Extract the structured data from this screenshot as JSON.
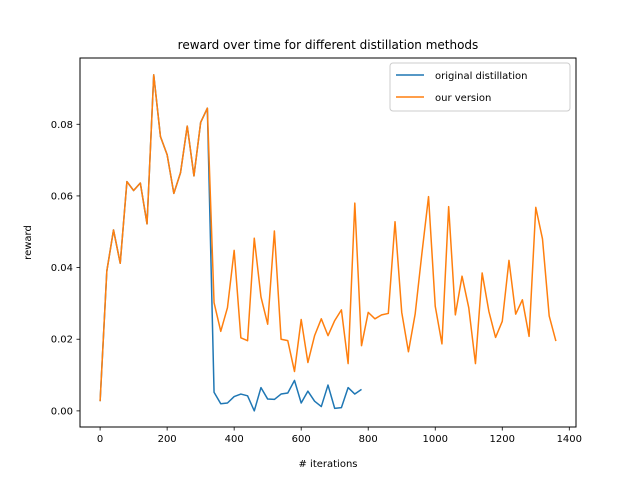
{
  "chart_data": {
    "type": "line",
    "title": "reward over time for different distillation methods",
    "xlabel": "# iterations",
    "ylabel": "reward",
    "xlim": [
      -60,
      1420
    ],
    "ylim": [
      -0.0045,
      0.0985
    ],
    "xticks": [
      0,
      200,
      400,
      600,
      800,
      1000,
      1200,
      1400
    ],
    "yticks": [
      0.0,
      0.02,
      0.04,
      0.06,
      0.08
    ],
    "xtick_labels": [
      "0",
      "200",
      "400",
      "600",
      "800",
      "1000",
      "1200",
      "1400"
    ],
    "ytick_labels": [
      "0.00",
      "0.02",
      "0.04",
      "0.06",
      "0.08"
    ],
    "grid": false,
    "legend_position": "upper right",
    "series": [
      {
        "name": "original distillation",
        "color": "#1f77b4",
        "x": [
          0,
          20,
          40,
          60,
          80,
          100,
          120,
          140,
          160,
          180,
          200,
          220,
          240,
          260,
          280,
          300,
          320,
          340,
          360,
          380,
          400,
          420,
          440,
          460,
          480,
          500,
          520,
          540,
          560,
          580,
          600,
          620,
          640,
          660,
          680,
          700,
          720,
          740,
          760,
          780
        ],
        "y": [
          0.0027,
          0.039,
          0.0505,
          0.0412,
          0.064,
          0.0615,
          0.0636,
          0.0522,
          0.0938,
          0.0766,
          0.0715,
          0.0607,
          0.0665,
          0.0795,
          0.0656,
          0.0805,
          0.0845,
          0.0052,
          0.002,
          0.0022,
          0.004,
          0.0047,
          0.0042,
          0.0,
          0.0065,
          0.0033,
          0.0032,
          0.0047,
          0.005,
          0.0085,
          0.0022,
          0.0055,
          0.0027,
          0.0012,
          0.0072,
          0.0007,
          0.0009,
          0.0065,
          0.0047,
          0.006
        ]
      },
      {
        "name": "our version",
        "color": "#ff7f0e",
        "x": [
          0,
          20,
          40,
          60,
          80,
          100,
          120,
          140,
          160,
          180,
          200,
          220,
          240,
          260,
          280,
          300,
          320,
          340,
          360,
          380,
          400,
          420,
          440,
          460,
          480,
          500,
          520,
          540,
          560,
          580,
          600,
          620,
          640,
          660,
          680,
          700,
          720,
          740,
          760,
          780,
          800,
          820,
          840,
          860,
          880,
          900,
          920,
          940,
          960,
          980,
          1000,
          1020,
          1040,
          1060,
          1080,
          1100,
          1120,
          1140,
          1160,
          1180,
          1200,
          1220,
          1240,
          1260,
          1280,
          1300,
          1320,
          1340,
          1360
        ],
        "y": [
          0.0027,
          0.039,
          0.0505,
          0.0412,
          0.064,
          0.0615,
          0.0636,
          0.0522,
          0.0938,
          0.0766,
          0.0715,
          0.0607,
          0.0665,
          0.0795,
          0.0656,
          0.0805,
          0.0845,
          0.0302,
          0.0222,
          0.0288,
          0.0448,
          0.0204,
          0.0196,
          0.0482,
          0.0318,
          0.0242,
          0.0502,
          0.02,
          0.0196,
          0.011,
          0.0255,
          0.0135,
          0.021,
          0.0257,
          0.021,
          0.0252,
          0.0282,
          0.0132,
          0.058,
          0.0182,
          0.0275,
          0.0257,
          0.0268,
          0.0272,
          0.0528,
          0.0275,
          0.0165,
          0.027,
          0.0438,
          0.0598,
          0.0292,
          0.0187,
          0.057,
          0.0268,
          0.0376,
          0.0288,
          0.0132,
          0.0385,
          0.0278,
          0.0205,
          0.025,
          0.042,
          0.027,
          0.031,
          0.0208,
          0.0568,
          0.048,
          0.0265,
          0.0195
        ]
      }
    ]
  }
}
